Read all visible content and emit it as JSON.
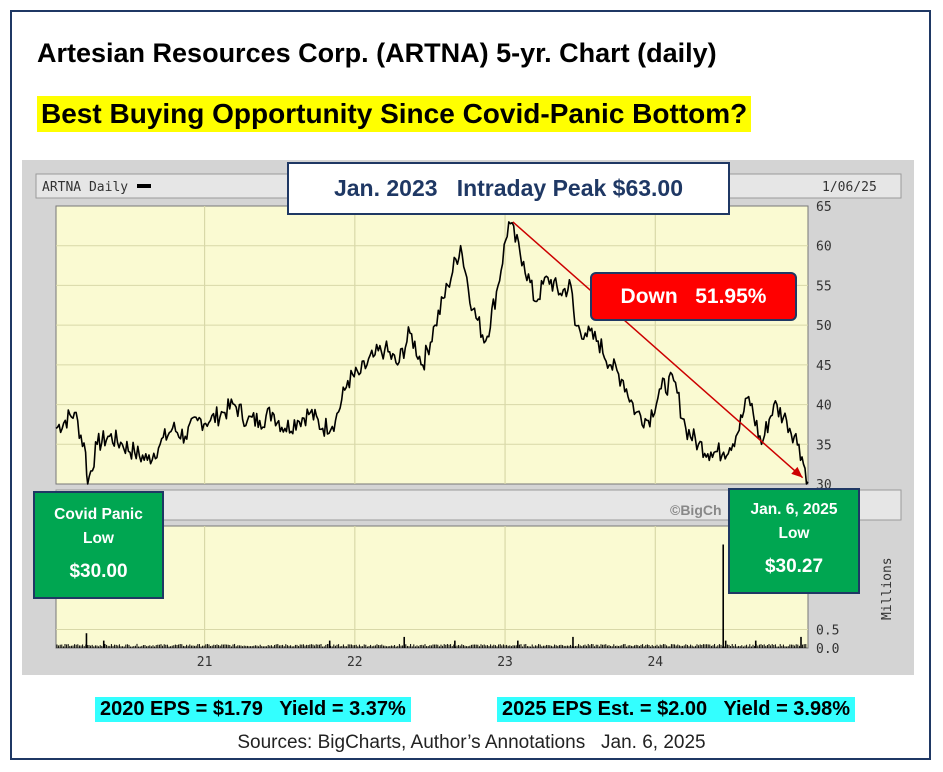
{
  "header": {
    "title": "Artesian Resources Corp. (ARTNA)  5-yr. Chart (daily)",
    "subtitle": "Best Buying Opportunity Since Covid-Panic Bottom?"
  },
  "annotations": {
    "peak": "Jan. 2023   Intraday Peak $63.00",
    "down": "Down   51.95%",
    "covid_line1": "Covid Panic",
    "covid_line2": "Low",
    "covid_value": "$30.00",
    "jan6_line1": "Jan. 6, 2025",
    "jan6_line2": "Low",
    "jan6_value": "$30.27",
    "watermark": "©BigCh"
  },
  "footer": {
    "eps_2020": "2020 EPS = $1.79   Yield = 3.37%",
    "eps_2025": "2025 EPS Est. = $2.00   Yield = 3.98%",
    "sources": "Sources: BigCharts, Author’s Annotations   Jan. 6, 2025"
  },
  "colors": {
    "plot_bg": "#fafad2",
    "grid": "#d8d8a8",
    "price": "#000000",
    "trend_arrow": "#cc0000",
    "callout_red": "#ff0000",
    "callout_green": "#00a651",
    "eps_highlight": "#33ffff",
    "title_highlight": "#ffff00"
  },
  "chart_data": {
    "type": "line",
    "ticker_label": "ARTNA Daily",
    "date_label": "1/06/25",
    "x_tick_labels": [
      "21",
      "22",
      "23",
      "24"
    ],
    "price_axis": {
      "ylim": [
        30,
        65
      ],
      "ticks": [
        30,
        35,
        40,
        45,
        50,
        55,
        60,
        65
      ]
    },
    "volume_axis": {
      "label": "Millions",
      "ticks": [
        "0.0",
        "0.5"
      ],
      "ylim": [
        0,
        3.3
      ]
    },
    "price_series": {
      "name": "ARTNA Daily",
      "x": [
        "2020-01-06",
        "2020-02-20",
        "2020-03-18",
        "2020-03-23",
        "2020-04-15",
        "2020-05-15",
        "2020-06-15",
        "2020-07-15",
        "2020-08-15",
        "2020-09-15",
        "2020-10-15",
        "2020-11-15",
        "2020-12-15",
        "2021-01-15",
        "2021-02-15",
        "2021-03-15",
        "2021-04-15",
        "2021-05-15",
        "2021-06-15",
        "2021-07-15",
        "2021-08-15",
        "2021-09-15",
        "2021-10-15",
        "2021-11-15",
        "2021-12-15",
        "2022-01-15",
        "2022-02-15",
        "2022-03-15",
        "2022-04-15",
        "2022-05-15",
        "2022-06-15",
        "2022-07-15",
        "2022-08-15",
        "2022-09-15",
        "2022-10-15",
        "2022-11-15",
        "2022-12-15",
        "2023-01-10",
        "2023-02-15",
        "2023-03-15",
        "2023-04-15",
        "2023-05-15",
        "2023-06-10",
        "2023-06-20",
        "2023-07-15",
        "2023-08-15",
        "2023-09-15",
        "2023-10-15",
        "2023-11-15",
        "2023-12-15",
        "2024-01-15",
        "2024-02-15",
        "2024-03-15",
        "2024-04-15",
        "2024-05-15",
        "2024-06-15",
        "2024-07-15",
        "2024-08-15",
        "2024-09-15",
        "2024-10-15",
        "2024-11-15",
        "2024-12-15",
        "2025-01-06"
      ],
      "values": [
        37,
        39,
        34,
        30,
        35,
        36,
        35,
        34,
        33,
        35,
        37,
        36,
        38,
        38,
        39,
        40,
        38,
        38,
        39,
        37,
        38,
        39,
        37,
        38,
        43,
        44,
        46,
        47,
        45,
        49,
        45,
        50,
        55,
        60,
        52,
        48,
        55,
        63,
        58,
        53,
        56,
        54,
        55,
        50,
        49,
        48,
        45,
        43,
        39,
        38,
        42,
        43,
        37,
        35,
        34,
        34,
        36,
        41,
        35,
        40,
        38,
        35,
        30.27
      ]
    },
    "volume_series": {
      "x": [
        "2020-03-20",
        "2020-05-01",
        "2021-11-01",
        "2022-05-01",
        "2022-09-01",
        "2023-02-01",
        "2023-06-15",
        "2024-06-14",
        "2024-06-20",
        "2024-09-01",
        "2024-12-20"
      ],
      "values": [
        0.4,
        0.2,
        0.2,
        0.3,
        0.2,
        0.2,
        0.3,
        2.8,
        0.2,
        0.2,
        0.3
      ]
    }
  }
}
